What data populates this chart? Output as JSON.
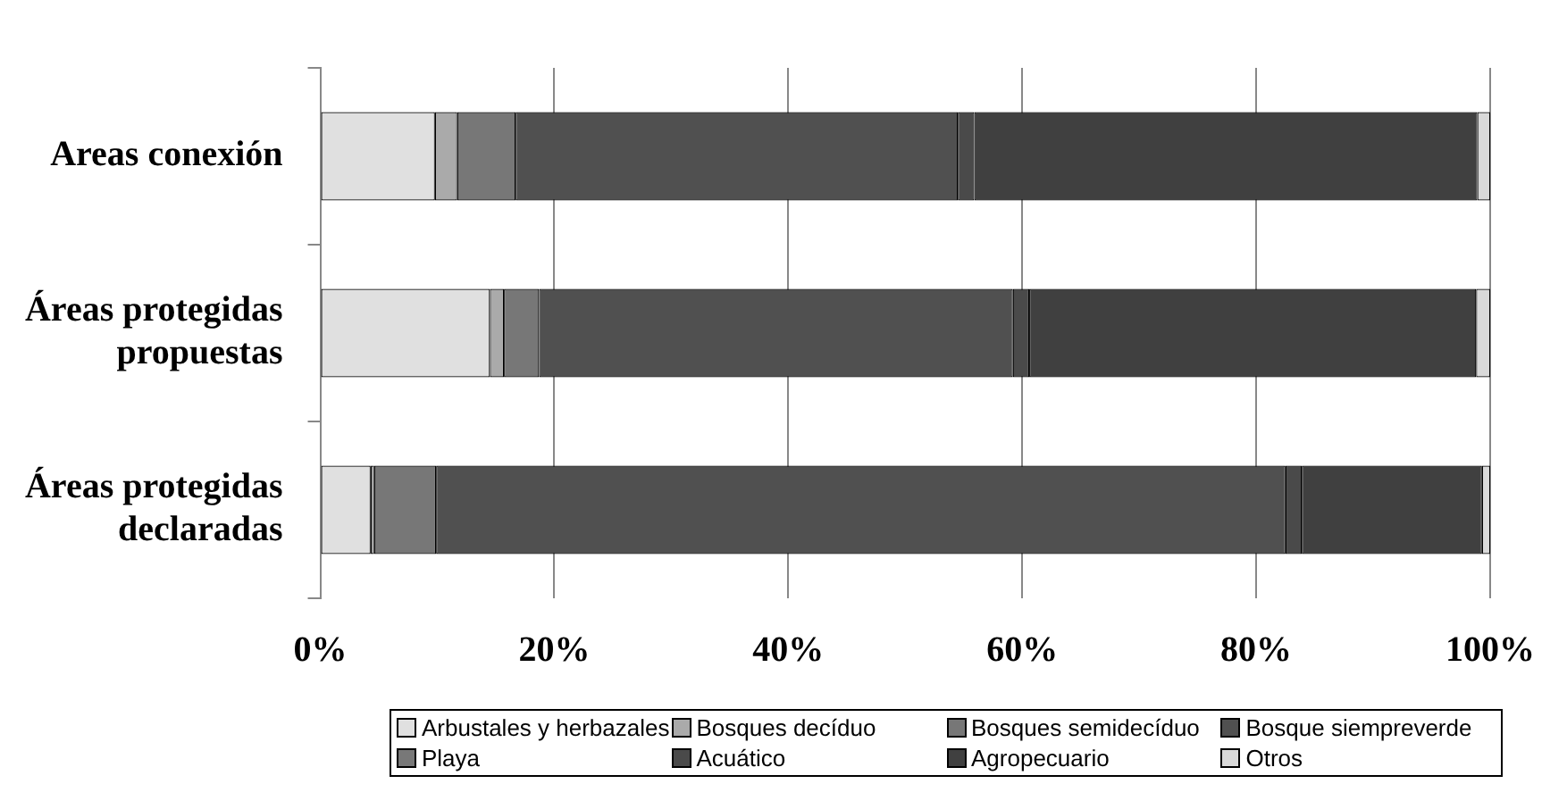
{
  "chart_data": {
    "type": "bar",
    "orientation": "horizontal",
    "stacked": true,
    "categories": [
      "Areas conexión",
      "Áreas protegidas propuestas",
      "Áreas protegidas declaradas"
    ],
    "series": [
      {
        "name": "Arbustales y herbazales",
        "color": "#e0e0e0",
        "values": [
          9.8,
          14.5,
          4.3
        ]
      },
      {
        "name": "Bosques decíduo",
        "color": "#aaaaaa",
        "values": [
          1.9,
          1.2,
          0.3
        ]
      },
      {
        "name": "Bosques semidecíduo",
        "color": "#777777",
        "values": [
          5.0,
          3.0,
          5.3
        ]
      },
      {
        "name": "Bosque siempreverde",
        "color": "#505050",
        "values": [
          37.8,
          40.5,
          72.6
        ]
      },
      {
        "name": "Playa",
        "color": "#787878",
        "values": [
          0,
          0,
          0
        ]
      },
      {
        "name": "Acuático",
        "color": "#4a4a4a",
        "values": [
          1.4,
          1.4,
          1.4
        ]
      },
      {
        "name": "Agropecuario",
        "color": "#404040",
        "values": [
          43.0,
          38.2,
          15.4
        ]
      },
      {
        "name": "Otros",
        "color": "#d9d9d9",
        "values": [
          1.1,
          1.2,
          0.7
        ]
      }
    ],
    "xlim": [
      0,
      100
    ],
    "xticks": [
      {
        "value": 0,
        "label": "0%"
      },
      {
        "value": 20,
        "label": "20%"
      },
      {
        "value": 40,
        "label": "40%"
      },
      {
        "value": 60,
        "label": "60%"
      },
      {
        "value": 80,
        "label": "80%"
      },
      {
        "value": 100,
        "label": "100%"
      }
    ],
    "grid": "x",
    "legend": "bottom"
  }
}
